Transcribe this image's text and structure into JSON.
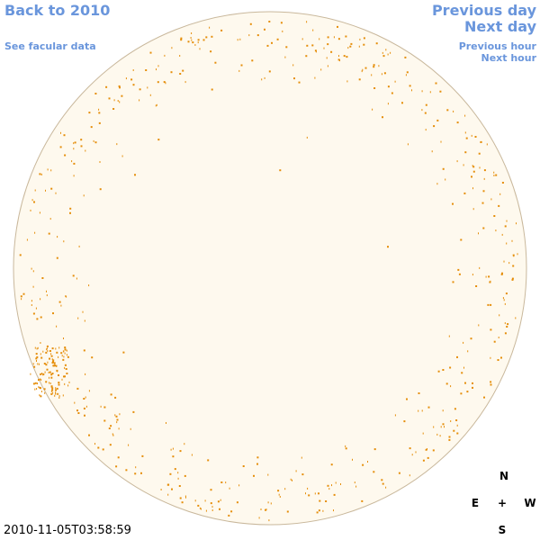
{
  "nav": {
    "back": "Back to 2010",
    "facular": "See facular data",
    "previous_day": "Previous day",
    "next_day": "Next day",
    "previous_hour": "Previous hour",
    "next_hour": "Next hour"
  },
  "timestamp": "2010-11-05T03:58:59",
  "compass": {
    "north": "N",
    "east": "E",
    "center": "+",
    "west": "W",
    "south": "S"
  }
}
